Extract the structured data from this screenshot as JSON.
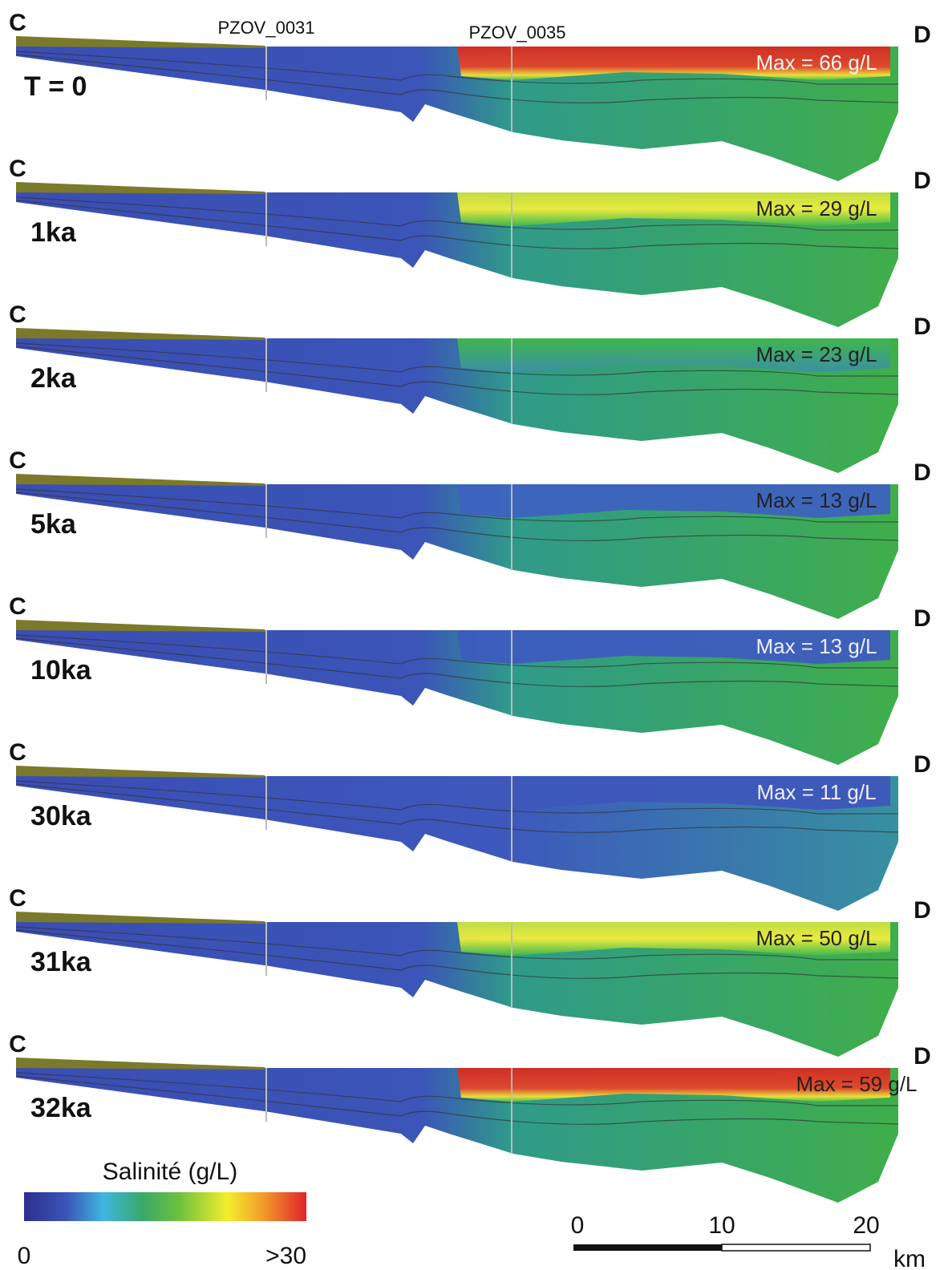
{
  "header": {
    "wells": [
      "PZOV_0031",
      "PZOV_0035"
    ]
  },
  "panels": [
    {
      "left": "C",
      "right": "D",
      "time": "T = 0",
      "max": "Max = 66 g/L"
    },
    {
      "left": "C",
      "right": "D",
      "time": "1ka",
      "max": "Max = 29 g/L"
    },
    {
      "left": "C",
      "right": "D",
      "time": "2ka",
      "max": "Max = 23 g/L"
    },
    {
      "left": "C",
      "right": "D",
      "time": "5ka",
      "max": "Max = 13 g/L"
    },
    {
      "left": "C",
      "right": "D",
      "time": "10ka",
      "max": "Max = 13 g/L"
    },
    {
      "left": "C",
      "right": "D",
      "time": "30ka",
      "max": "Max = 11 g/L"
    },
    {
      "left": "C",
      "right": "D",
      "time": "31ka",
      "max": "Max = 50 g/L"
    },
    {
      "left": "C",
      "right": "D",
      "time": "32ka",
      "max": "Max = 59 g/L"
    }
  ],
  "legend": {
    "title": "Salinité (g/L)",
    "min": "0",
    "max": ">30"
  },
  "scale_bar": {
    "ticks": [
      "0",
      "10",
      "20"
    ],
    "unit": "km"
  }
}
